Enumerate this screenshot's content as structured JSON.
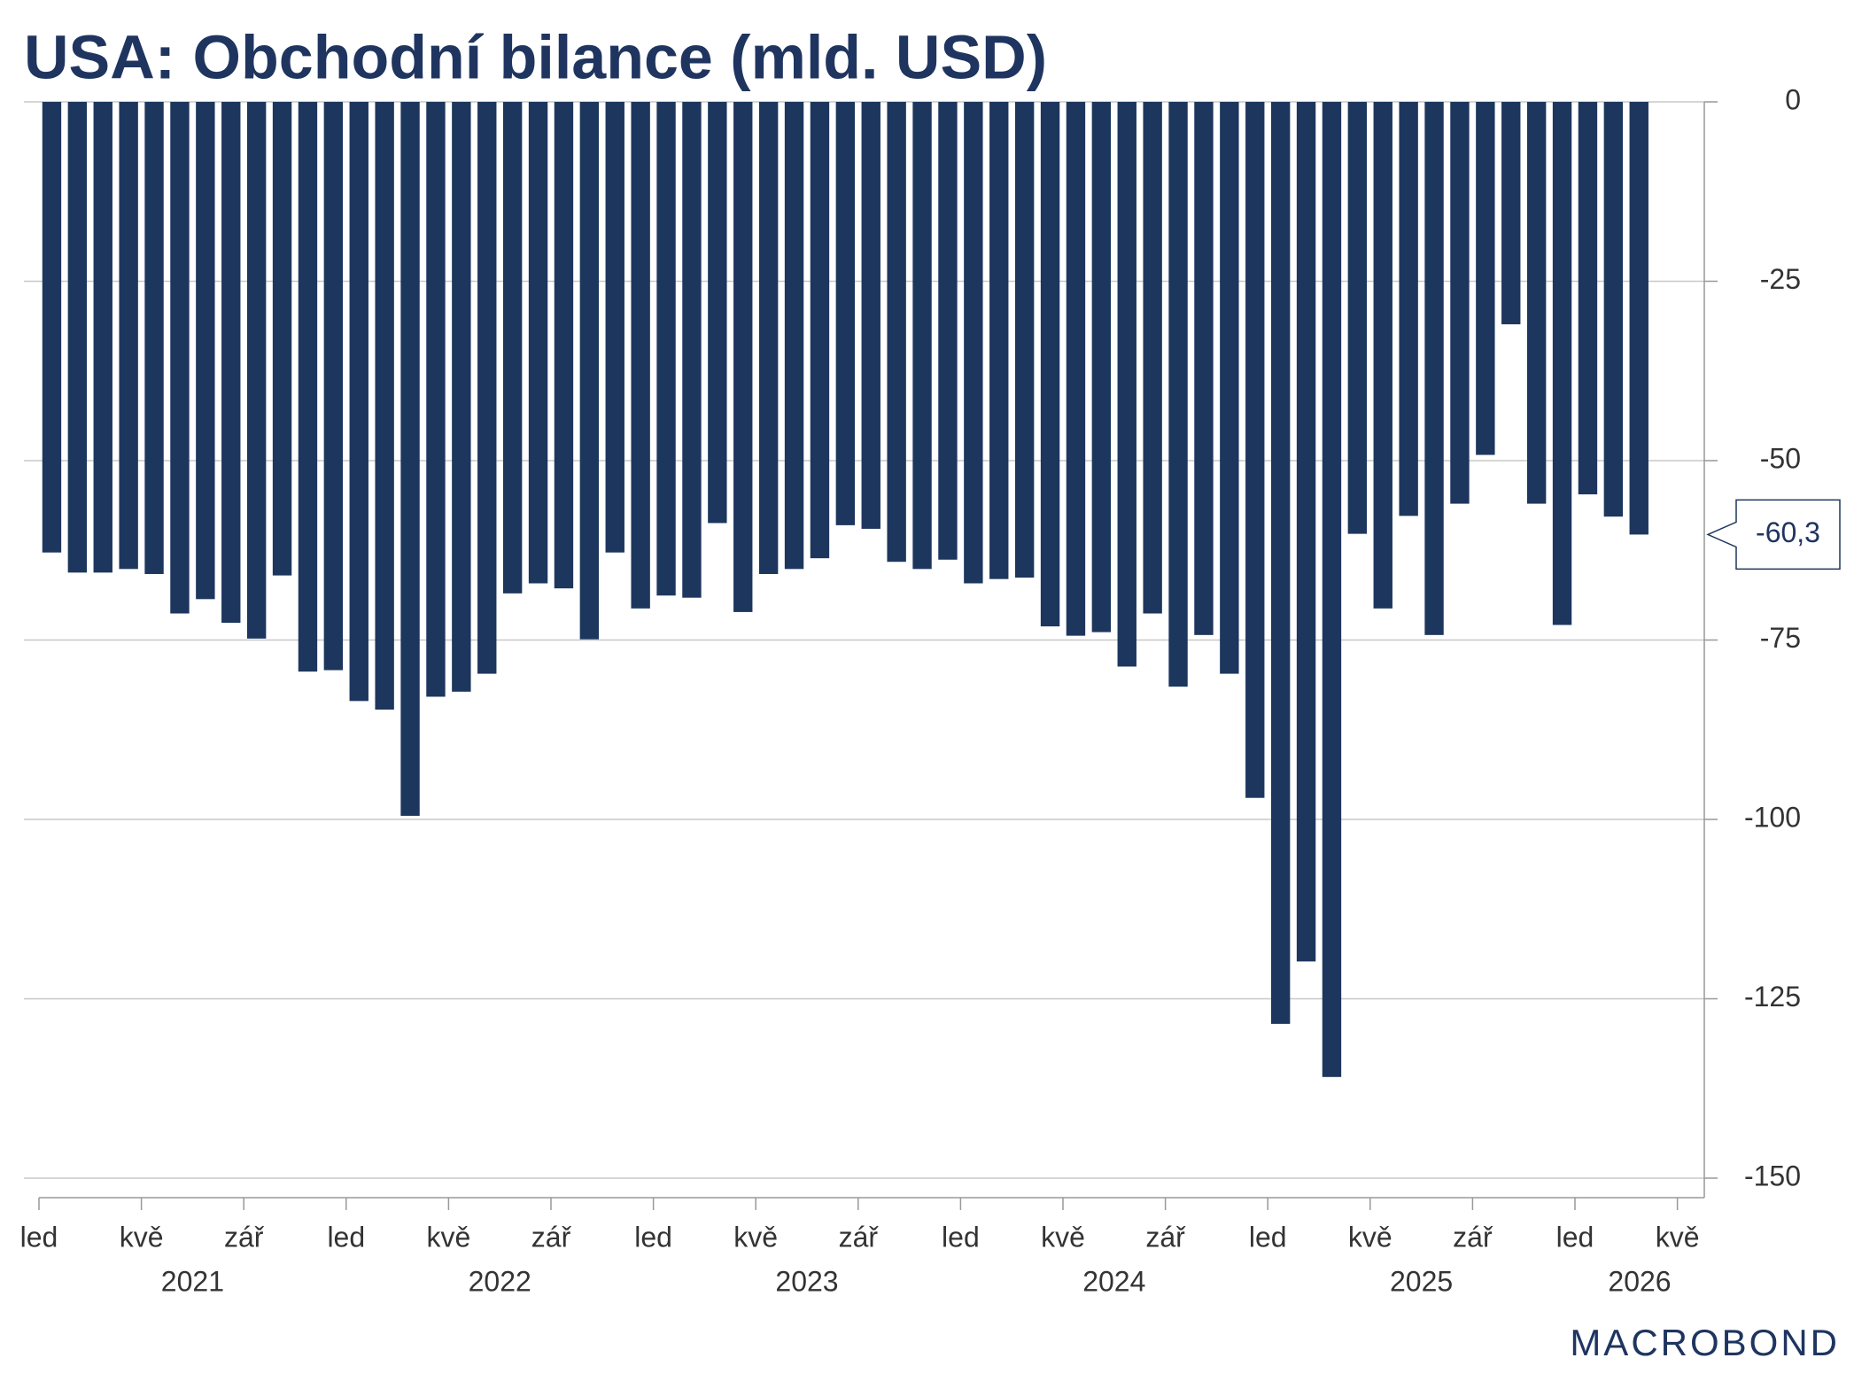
{
  "chart_data": {
    "type": "bar",
    "title": "USA: Obchodní bilance (mld. USD)",
    "x": [
      "2021-01",
      "2021-02",
      "2021-03",
      "2021-04",
      "2021-05",
      "2021-06",
      "2021-07",
      "2021-08",
      "2021-09",
      "2021-10",
      "2021-11",
      "2021-12",
      "2022-01",
      "2022-02",
      "2022-03",
      "2022-04",
      "2022-05",
      "2022-06",
      "2022-07",
      "2022-08",
      "2022-09",
      "2022-10",
      "2022-11",
      "2022-12",
      "2023-01",
      "2023-02",
      "2023-03",
      "2023-04",
      "2023-05",
      "2023-06",
      "2023-07",
      "2023-08",
      "2023-09",
      "2023-10",
      "2023-11",
      "2023-12",
      "2024-01",
      "2024-02",
      "2024-03",
      "2024-04",
      "2024-05",
      "2024-06",
      "2024-07",
      "2024-08",
      "2024-09",
      "2024-10",
      "2024-11",
      "2024-12",
      "2025-01",
      "2025-02",
      "2025-03",
      "2025-04",
      "2025-05",
      "2025-06",
      "2025-07",
      "2025-08",
      "2025-09",
      "2025-10",
      "2025-11",
      "2025-12",
      "2026-01",
      "2026-02",
      "2026-03"
    ],
    "values": [
      -62.8,
      -65.6,
      -65.6,
      -65.1,
      -65.8,
      -71.3,
      -69.3,
      -72.6,
      -74.8,
      -66.0,
      -79.4,
      -79.2,
      -83.5,
      -84.7,
      -99.5,
      -82.9,
      -82.2,
      -79.7,
      -68.5,
      -67.1,
      -67.8,
      -74.9,
      -62.8,
      -70.6,
      -68.8,
      -69.1,
      -58.7,
      -71.1,
      -65.8,
      -65.1,
      -63.6,
      -59.0,
      -59.5,
      -64.1,
      -65.1,
      -63.8,
      -67.1,
      -66.5,
      -66.3,
      -73.1,
      -74.4,
      -73.9,
      -78.7,
      -71.3,
      -81.5,
      -74.3,
      -79.7,
      -97.0,
      -128.5,
      -119.8,
      -135.9,
      -60.2,
      -70.6,
      -57.7,
      -74.3,
      -56.0,
      -49.2,
      -31.0,
      -56.0,
      -72.9,
      -54.7,
      -57.8,
      -60.3
    ],
    "value_labels": [
      null,
      null,
      null,
      null,
      null,
      null,
      null,
      null,
      null,
      null,
      null,
      null,
      null,
      null,
      null,
      null,
      null,
      null,
      null,
      null,
      null,
      null,
      null,
      null,
      null,
      null,
      null,
      null,
      null,
      null,
      null,
      null,
      null,
      null,
      null,
      null,
      null,
      null,
      null,
      null,
      null,
      null,
      null,
      null,
      null,
      null,
      null,
      null,
      null,
      null,
      null,
      null,
      null,
      null,
      null,
      null,
      null,
      null,
      null,
      null,
      null,
      null,
      "-60,3"
    ],
    "color": "#1d365d",
    "ylim": [
      -150,
      0
    ],
    "yticks": [
      0,
      -25,
      -50,
      -75,
      -100,
      -125,
      -150
    ],
    "grid": true,
    "xticks": [
      {
        "value": "2021-01",
        "label": "led"
      },
      {
        "value": "2021-05",
        "label": "kvě"
      },
      {
        "value": "2021-09",
        "label": "zář"
      },
      {
        "value": "2022-01",
        "label": "led"
      },
      {
        "value": "2022-05",
        "label": "kvě"
      },
      {
        "value": "2022-09",
        "label": "zář"
      },
      {
        "value": "2023-01",
        "label": "led"
      },
      {
        "value": "2023-05",
        "label": "kvě"
      },
      {
        "value": "2023-09",
        "label": "zář"
      },
      {
        "value": "2024-01",
        "label": "led"
      },
      {
        "value": "2024-05",
        "label": "kvě"
      },
      {
        "value": "2024-09",
        "label": "zář"
      },
      {
        "value": "2025-01",
        "label": "led"
      },
      {
        "value": "2025-05",
        "label": "kvě"
      },
      {
        "value": "2025-09",
        "label": "zář"
      },
      {
        "value": "2026-01",
        "label": "led"
      },
      {
        "value": "2026-05",
        "label": "kvě"
      }
    ],
    "years": [
      "2021",
      "2022",
      "2023",
      "2024",
      "2025",
      "2026"
    ],
    "source_logo": "MACROBOND"
  }
}
